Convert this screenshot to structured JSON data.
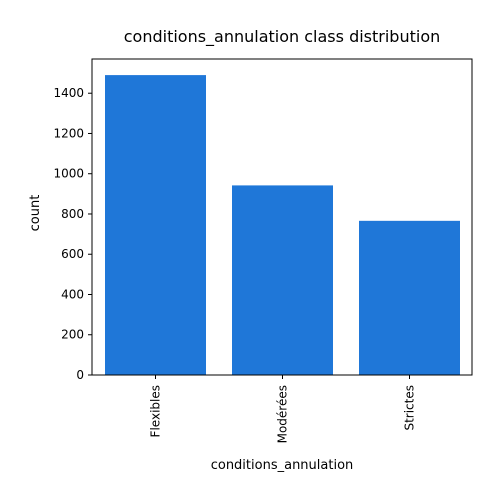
{
  "chart_data": {
    "type": "bar",
    "title": "conditions_annulation class distribution",
    "xlabel": "conditions_annulation",
    "ylabel": "count",
    "categories": [
      "Flexibles",
      "Modérées",
      "Strictes"
    ],
    "values": [
      1490,
      942,
      766
    ],
    "ylim": [
      0,
      1570
    ],
    "yticks": [
      0,
      200,
      400,
      600,
      800,
      1000,
      1200,
      1400
    ],
    "bar_color": "#1f77d8",
    "grid": false,
    "legend": "none",
    "xtick_rotation": "vertical"
  }
}
